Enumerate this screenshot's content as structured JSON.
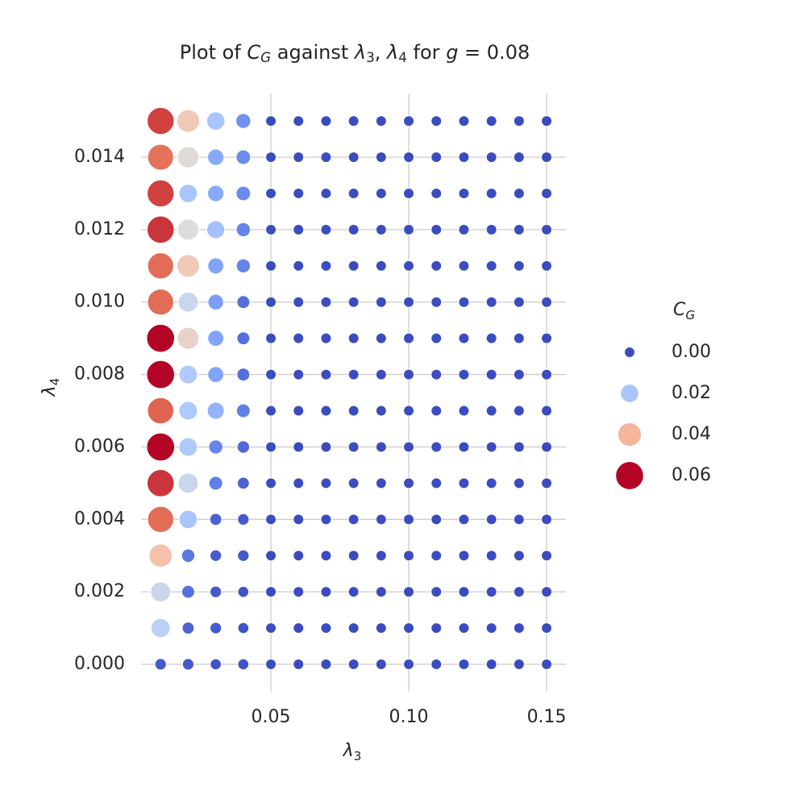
{
  "chart_data": {
    "type": "scatter",
    "title": "Plot of CG against λ3, λ4 for g = 0.08",
    "x_label": "λ3",
    "y_label": "λ4",
    "x": [
      0.01,
      0.02,
      0.03,
      0.04,
      0.05,
      0.06,
      0.07,
      0.08,
      0.09,
      0.1,
      0.11,
      0.12,
      0.13,
      0.14,
      0.15
    ],
    "y": [
      0,
      0.001,
      0.002,
      0.003,
      0.004,
      0.005,
      0.006,
      0.007,
      0.008,
      0.009,
      0.01,
      0.011,
      0.012,
      0.013,
      0.014,
      0.015
    ],
    "values": [
      [
        0.002,
        0.002,
        0.001,
        0.001,
        0,
        0,
        0,
        0,
        0,
        0,
        0,
        0,
        0,
        0,
        0
      ],
      [
        0.023,
        0.003,
        0.002,
        0.001,
        0,
        0,
        0,
        0,
        0,
        0,
        0,
        0,
        0,
        0,
        0
      ],
      [
        0.026,
        0.005,
        0.002,
        0.001,
        0,
        0,
        0,
        0,
        0,
        0,
        0,
        0,
        0,
        0,
        0
      ],
      [
        0.038,
        0.006,
        0.002,
        0.002,
        0,
        0,
        0,
        0,
        0,
        0,
        0,
        0,
        0,
        0,
        0
      ],
      [
        0.051,
        0.02,
        0.003,
        0.002,
        0,
        0,
        0,
        0,
        0,
        0,
        0,
        0,
        0,
        0,
        0
      ],
      [
        0.056,
        0.026,
        0.007,
        0.003,
        0,
        0,
        0,
        0,
        0,
        0,
        0,
        0,
        0,
        0,
        0
      ],
      [
        0.06,
        0.021,
        0.008,
        0.004,
        0,
        0,
        0,
        0,
        0,
        0,
        0,
        0,
        0,
        0,
        0
      ],
      [
        0.052,
        0.021,
        0.016,
        0.007,
        0,
        0,
        0,
        0,
        0,
        0,
        0,
        0,
        0,
        0,
        0
      ],
      [
        0.06,
        0.021,
        0.013,
        0.005,
        0,
        0,
        0,
        0,
        0,
        0,
        0,
        0,
        0,
        0,
        0
      ],
      [
        0.06,
        0.033,
        0.013,
        0.005,
        0,
        0,
        0,
        0,
        0,
        0,
        0,
        0,
        0,
        0,
        0
      ],
      [
        0.051,
        0.026,
        0.012,
        0.005,
        0,
        0,
        0,
        0,
        0,
        0,
        0,
        0,
        0,
        0,
        0
      ],
      [
        0.051,
        0.036,
        0.013,
        0.008,
        0,
        0,
        0,
        0,
        0,
        0,
        0,
        0,
        0,
        0,
        0
      ],
      [
        0.056,
        0.03,
        0.019,
        0.008,
        0,
        0,
        0,
        0,
        0,
        0,
        0,
        0,
        0,
        0,
        0
      ],
      [
        0.055,
        0.02,
        0.014,
        0.009,
        0,
        0,
        0,
        0,
        0,
        0,
        0,
        0,
        0,
        0,
        0
      ],
      [
        0.05,
        0.031,
        0.014,
        0.009,
        0,
        0,
        0,
        0,
        0,
        0,
        0,
        0,
        0,
        0,
        0
      ],
      [
        0.055,
        0.036,
        0.02,
        0.01,
        0,
        0,
        0,
        0,
        0,
        0,
        0,
        0,
        0,
        0,
        0
      ]
    ],
    "colormap": "coolwarm",
    "xlim": [
      0.003,
      0.157
    ],
    "ylim": [
      -0.00075,
      0.01575
    ],
    "xticks": [
      0.05,
      {
        "value": 0.1,
        "label": "0.10"
      },
      0.15
    ],
    "yticks": [
      {
        "value": 0,
        "label": "0.000"
      },
      {
        "value": 0.002,
        "label": "0.002"
      },
      {
        "value": 0.004,
        "label": "0.004"
      },
      {
        "value": 0.006,
        "label": "0.006"
      },
      {
        "value": 0.008,
        "label": "0.008"
      },
      {
        "value": 0.01,
        "label": "0.010"
      },
      {
        "value": 0.012,
        "label": "0.012"
      },
      {
        "value": 0.014,
        "label": "0.014"
      }
    ],
    "grid": true,
    "legend": {
      "position": "right",
      "title": "CG",
      "entries": [
        {
          "value": 0,
          "label": "0.00"
        },
        {
          "value": 0.02,
          "label": "0.02"
        },
        {
          "value": 0.04,
          "label": "0.04"
        },
        {
          "value": 0.06,
          "label": "0.06"
        }
      ]
    }
  }
}
